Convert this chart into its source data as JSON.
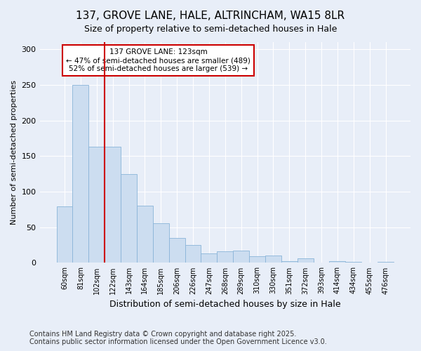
{
  "title": "137, GROVE LANE, HALE, ALTRINCHAM, WA15 8LR",
  "subtitle": "Size of property relative to semi-detached houses in Hale",
  "xlabel": "Distribution of semi-detached houses by size in Hale",
  "ylabel": "Number of semi-detached properties",
  "categories": [
    "60sqm",
    "81sqm",
    "102sqm",
    "122sqm",
    "143sqm",
    "164sqm",
    "185sqm",
    "206sqm",
    "226sqm",
    "247sqm",
    "268sqm",
    "289sqm",
    "310sqm",
    "330sqm",
    "351sqm",
    "372sqm",
    "393sqm",
    "414sqm",
    "434sqm",
    "455sqm",
    "476sqm"
  ],
  "values": [
    79,
    250,
    163,
    163,
    125,
    80,
    56,
    35,
    25,
    13,
    16,
    17,
    9,
    10,
    2,
    6,
    0,
    2,
    1,
    0,
    1
  ],
  "bar_color": "#ccddf0",
  "bar_edge_color": "#8ab4d8",
  "vline_x_index": 3,
  "vline_color": "#cc0000",
  "annotation_text": "137 GROVE LANE: 123sqm\n← 47% of semi-detached houses are smaller (489)\n52% of semi-detached houses are larger (539) →",
  "annotation_box_color": "#ffffff",
  "annotation_box_edge": "#cc0000",
  "footer": "Contains HM Land Registry data © Crown copyright and database right 2025.\nContains public sector information licensed under the Open Government Licence v3.0.",
  "background_color": "#e8eef8",
  "plot_background": "#e8eef8",
  "title_fontsize": 11,
  "subtitle_fontsize": 9,
  "footer_fontsize": 7,
  "ylabel_fontsize": 8,
  "xlabel_fontsize": 9,
  "ylim": [
    0,
    310
  ],
  "yticks": [
    0,
    50,
    100,
    150,
    200,
    250,
    300
  ]
}
